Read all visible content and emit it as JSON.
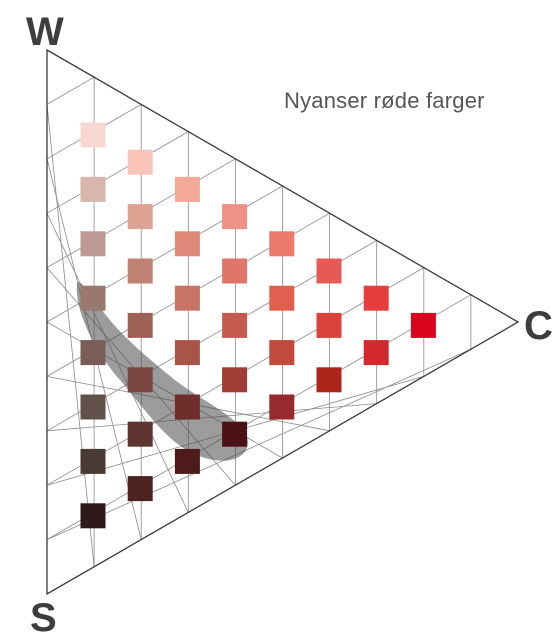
{
  "vertices": {
    "w": "W",
    "c": "C",
    "s": "S"
  },
  "title": "Nyanser røde farger",
  "swatches": [
    {
      "col": 0,
      "row": 0,
      "color": "#f6d8d0"
    },
    {
      "col": 0,
      "row": 1,
      "color": "#d8b6ae"
    },
    {
      "col": 0,
      "row": 2,
      "color": "#bb9b93"
    },
    {
      "col": 0,
      "row": 3,
      "color": "#98786f"
    },
    {
      "col": 0,
      "row": 4,
      "color": "#795d56"
    },
    {
      "col": 0,
      "row": 5,
      "color": "#62504a"
    },
    {
      "col": 0,
      "row": 6,
      "color": "#4a3a36"
    },
    {
      "col": 0,
      "row": 7,
      "color": "#2e1a1a"
    },
    {
      "col": 1,
      "row": 0,
      "color": "#f9c5b8"
    },
    {
      "col": 1,
      "row": 1,
      "color": "#dca393"
    },
    {
      "col": 1,
      "row": 2,
      "color": "#bf8273"
    },
    {
      "col": 1,
      "row": 3,
      "color": "#9f6156"
    },
    {
      "col": 1,
      "row": 4,
      "color": "#7a4841"
    },
    {
      "col": 1,
      "row": 5,
      "color": "#5f3430"
    },
    {
      "col": 1,
      "row": 6,
      "color": "#4e2220"
    },
    {
      "col": 2,
      "row": 0,
      "color": "#f4a898"
    },
    {
      "col": 2,
      "row": 1,
      "color": "#e08878"
    },
    {
      "col": 2,
      "row": 2,
      "color": "#c77365"
    },
    {
      "col": 2,
      "row": 3,
      "color": "#a85448"
    },
    {
      "col": 2,
      "row": 4,
      "color": "#6e2e2a"
    },
    {
      "col": 2,
      "row": 5,
      "color": "#4e1a1a"
    },
    {
      "col": 3,
      "row": 0,
      "color": "#ee9286"
    },
    {
      "col": 3,
      "row": 1,
      "color": "#e0756a"
    },
    {
      "col": 3,
      "row": 2,
      "color": "#c55b4e"
    },
    {
      "col": 3,
      "row": 3,
      "color": "#a03c36"
    },
    {
      "col": 3,
      "row": 4,
      "color": "#4a1216"
    },
    {
      "col": 4,
      "row": 0,
      "color": "#ea7a6a"
    },
    {
      "col": 4,
      "row": 1,
      "color": "#e0604f"
    },
    {
      "col": 4,
      "row": 2,
      "color": "#c24a3c"
    },
    {
      "col": 4,
      "row": 3,
      "color": "#962a2c"
    },
    {
      "col": 5,
      "row": 0,
      "color": "#e55a54"
    },
    {
      "col": 5,
      "row": 1,
      "color": "#d8443c"
    },
    {
      "col": 5,
      "row": 2,
      "color": "#ad2518"
    },
    {
      "col": 6,
      "row": 0,
      "color": "#e73d3e"
    },
    {
      "col": 6,
      "row": 1,
      "color": "#d3292d"
    },
    {
      "col": 7,
      "row": 0,
      "color": "#d9041e"
    }
  ]
}
